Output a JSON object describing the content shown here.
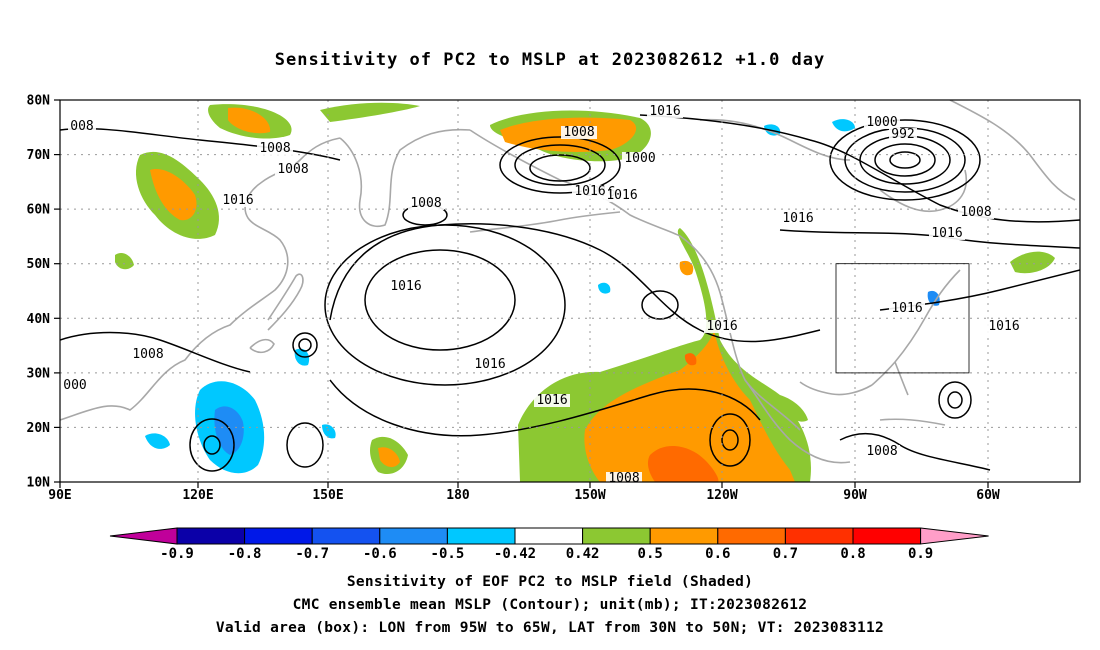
{
  "title": "Sensitivity of PC2 to MSLP at 2023082612 +1.0 day",
  "lat_labels": [
    "80N",
    "70N",
    "60N",
    "50N",
    "40N",
    "30N",
    "20N",
    "10N"
  ],
  "lon_labels": [
    "90E",
    "120E",
    "150E",
    "180",
    "150W",
    "120W",
    "90W",
    "60W"
  ],
  "contour_labels": [
    "008",
    "1008",
    "1008",
    "1016",
    "1008",
    "1016",
    "1008",
    "1000",
    "1016",
    "1016",
    "1000",
    "992",
    "1016",
    "1008",
    "1016",
    "1016",
    "1016",
    "1016",
    "1016",
    "1016",
    "1016",
    "1008",
    "000",
    "1016",
    "1008",
    "1008"
  ],
  "colorbar": {
    "labels": [
      "-0.9",
      "-0.8",
      "-0.7",
      "-0.6",
      "-0.5",
      "-0.42",
      "0.42",
      "0.5",
      "0.6",
      "0.7",
      "0.8",
      "0.9"
    ],
    "colors": [
      "#0b00a8",
      "#0018e8",
      "#1452f0",
      "#1e8cf5",
      "#00c8ff",
      "#ffffff",
      "#8cc832",
      "#ff9a00",
      "#ff6a00",
      "#ff3000",
      "#ff0000"
    ],
    "low_arrow": "#c0009a",
    "high_arrow": "#ff9ec8"
  },
  "valid_box": {
    "lon_range": "95W to 65W",
    "lat_range": "30N to 50N"
  },
  "captions": {
    "line1": "Sensitivity of EOF PC2 to MSLP field (Shaded)",
    "line2": "CMC ensemble mean MSLP (Contour); unit(mb); IT:2023082612",
    "line3": "Valid area (box): LON from 95W to 65W, LAT from 30N to 50N; VT: 2023083112"
  }
}
